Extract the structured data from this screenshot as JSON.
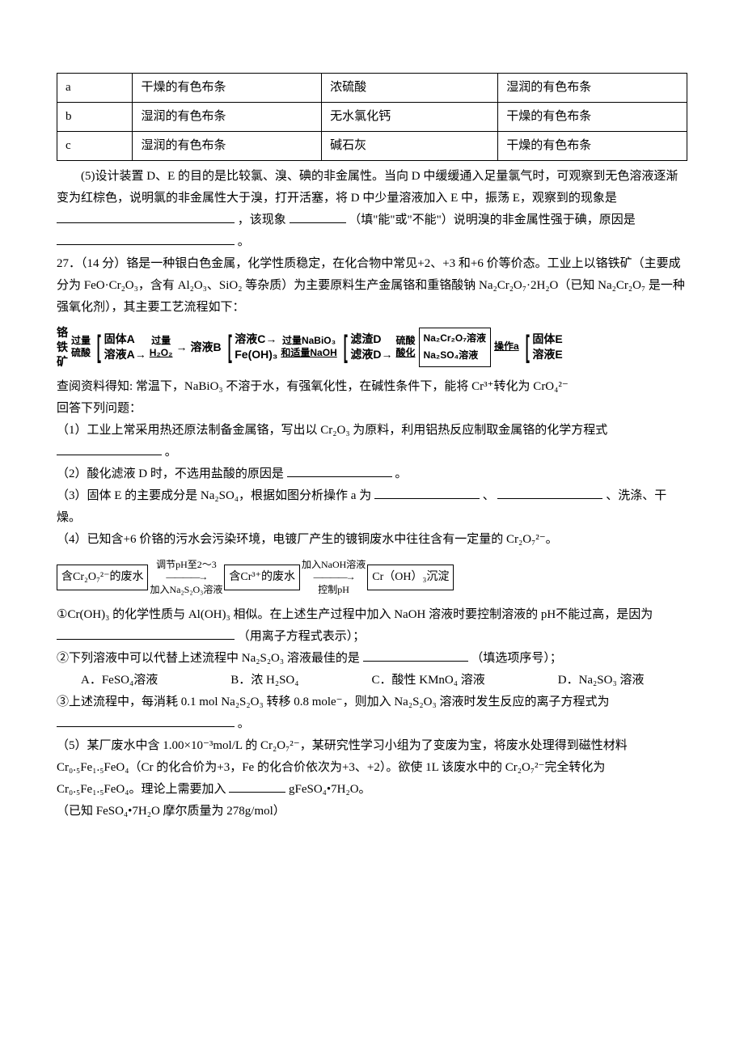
{
  "table": {
    "rows": [
      [
        "a",
        "干燥的有色布条",
        "浓硫酸",
        "湿润的有色布条"
      ],
      [
        "b",
        "湿润的有色布条",
        "无水氯化钙",
        "干燥的有色布条"
      ],
      [
        "c",
        "湿润的有色布条",
        "碱石灰",
        "干燥的有色布条"
      ]
    ]
  },
  "q26_5_intro": "(5)设计装置 D、E 的目的是比较氯、溴、碘的非金属性。当向 D 中缓缓通入足量氯气时，可观察到无色溶液逐渐变为红棕色，说明氯的非金属性大于溴，打开活塞，将 D 中少量溶液加入 E 中，振荡 E，观察到的现象是",
  "q26_5_mid": "，该现象",
  "q26_5_paren": "（填\"能\"或\"不能\"）说明溴的非金属性强于碘，原因是",
  "q26_5_end": "。",
  "q27_head": "27．（14 分）铬是一种银白色金属，化学性质稳定，在化合物中常见+2、+3 和+6 价等价态。工业上以铬铁矿（主要成分为 FeO·Cr₂O₃，含有 Al₂O₃、SiO₂ 等杂质）为主要原料生产金属铬和重铬酸钠 Na₂Cr₂O₇·2H₂O（已知 Na₂Cr₂O₇ 是一种强氧化剂），其主要工艺流程如下：",
  "flow1": {
    "start_top": "铬",
    "start_mid": "铁",
    "start_bot": "矿",
    "step1_top": "过量",
    "step1_bot": "硫酸",
    "branch1_top": "固体A",
    "branch1_bot": "溶液A",
    "step2_top": "过量",
    "step2_bot": "H₂O₂",
    "out2": "溶液B",
    "branch2_top": "溶液C",
    "branch2_bot": "Fe(OH)₃",
    "step3_top": "过量NaBiO₃",
    "step3_bot": "和适量NaOH",
    "branch3_top": "滤渣D",
    "branch3_bot": "滤液D",
    "step4_top": "硫酸",
    "step4_bot": "酸化",
    "box_top": "Na₂Cr₂O₇溶液",
    "box_bot": "Na₂SO₄溶液",
    "step5": "操作a",
    "end_top": "固体E",
    "end_bot": "溶液E"
  },
  "note": "查阅资料得知: 常温下，NaBiO₃ 不溶于水，有强氧化性，在碱性条件下，能将 Cr³⁺转化为 CrO₄²⁻",
  "answer_intro": "回答下列问题：",
  "q1": "（1）工业上常采用热还原法制备金属铬，写出以 Cr₂O₃ 为原料，利用铝热反应制取金属铬的化学方程式",
  "q1_end": "。",
  "q2": "（2）酸化滤液 D 时，不选用盐酸的原因是",
  "q2_end": "。",
  "q3": "（3）固体 E 的主要成分是 Na₂SO₄，根据如图分析操作 a 为",
  "q3_end": "、洗涤、干燥。",
  "q3_sep": "、",
  "q4": "（4）已知含+6 价铬的污水会污染环境，电镀厂产生的镀铜废水中往往含有一定量的 Cr₂O₇²⁻。",
  "flow2": {
    "box1": "含Cr₂O₇²⁻的废水",
    "arr1_top": "调节pH至2～3",
    "arr1_bot": "加入Na₂S₂O₃溶液",
    "box2": "含Cr³⁺的废水",
    "arr2_top": "加入NaOH溶液",
    "arr2_bot": "控制pH",
    "box3": "Cr（OH）₃沉淀"
  },
  "q4_1a": "①Cr(OH)₃ 的化学性质与 Al(OH)₃ 相似。在上述生产过程中加入 NaOH 溶液时要控制溶液的 pH不能过高，是因为",
  "q4_1b": "（用离子方程式表示）；",
  "q4_2": "②下列溶液中可以代替上述流程中 Na₂S₂O₃ 溶液最佳的是",
  "q4_2_end": "（填选项序号）；",
  "opts": {
    "a": "A．FeSO₄溶液",
    "b": "B．浓 H₂SO₄",
    "c": "C．酸性 KMnO₄ 溶液",
    "d": "D．Na₂SO₃ 溶液"
  },
  "q4_3a": "③上述流程中，每消耗 0.1 mol Na₂S₂O₃ 转移 0.8 mole⁻，则加入 Na₂S₂O₃ 溶液时发生反应的离子方程式为",
  "q4_3b": "。",
  "q5a": "（5）某厂废水中含 1.00×10⁻³mol/L 的 Cr₂O₇²⁻，某研究性学习小组为了变废为宝，将废水处理得到磁性材料 Cr₀.₅Fe₁.₅FeO₄（Cr 的化合价为+3，Fe 的化合价依次为+3、+2）。欲使 1L 该废水中的 Cr₂O₇²⁻完全转化为 Cr₀.₅Fe₁.₅FeO₄。理论上需要加入",
  "q5b": "gFeSO₄•7H₂O。",
  "q5_note": "（已知 FeSO₄•7H₂O 摩尔质量为 278g/mol）"
}
